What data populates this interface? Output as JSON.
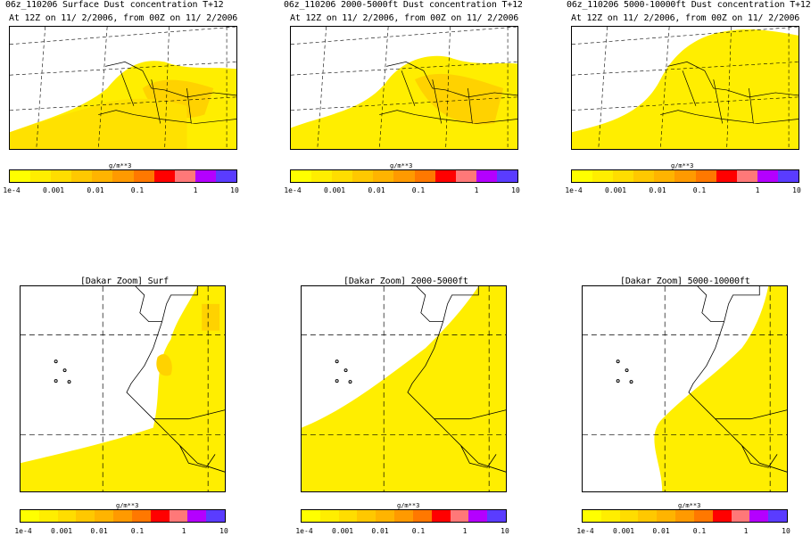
{
  "panels": [
    {
      "title": "06z_110206 Surface Dust concentration T+12",
      "subtitle": "At 12Z on 11/ 2/2006, from 00Z on 11/ 2/2006"
    },
    {
      "title": "06z_110206 2000-5000ft Dust concentration T+12",
      "subtitle": "At 12Z on 11/ 2/2006, from 00Z on 11/ 2/2006"
    },
    {
      "title": "06z_110206 5000-10000ft Dust concentration T+12",
      "subtitle": "At 12Z on 11/ 2/2006, from 00Z on 11/ 2/2006"
    },
    {
      "title": "[Dakar Zoom] Surf"
    },
    {
      "title": "[Dakar Zoom] 2000-5000ft"
    },
    {
      "title": "[Dakar Zoom] 5000-10000ft"
    }
  ],
  "colorbar": {
    "unit": "g/m**3",
    "colors": [
      "#ffff00",
      "#ffee00",
      "#ffdd00",
      "#ffc800",
      "#ffb400",
      "#ff9a00",
      "#ff7800",
      "#ff0000",
      "#ff7878",
      "#b400ff",
      "#5a3cff"
    ],
    "tick_labels": [
      "1e-4",
      "0.001",
      "0.01",
      "0.1",
      "1",
      "10"
    ]
  }
}
